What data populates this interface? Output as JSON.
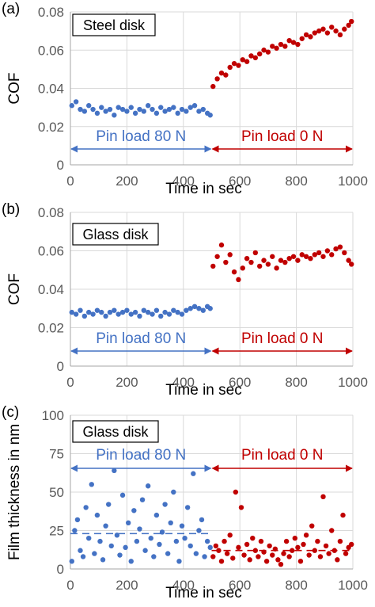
{
  "colors": {
    "blue": "#4472C4",
    "red": "#C00000",
    "grid": "#D9D9D9",
    "axis": "#A6A6A6"
  },
  "chart_data": [
    {
      "panel": "(a)",
      "type": "scatter",
      "box_label": "Steel disk",
      "xlabel": "Time in sec",
      "ylabel": "COF",
      "xlim": [
        0,
        1000
      ],
      "ylim": [
        0,
        0.08
      ],
      "xticks": [
        "0",
        "200",
        "400",
        "600",
        "800",
        "1000"
      ],
      "yticks": [
        "0",
        "0.02",
        "0.04",
        "0.06",
        "0.08"
      ],
      "grid": true,
      "annotations": [
        {
          "text": "Pin load 80 N",
          "x_from": 0,
          "x_to": 500,
          "color": "blue"
        },
        {
          "text": "Pin load 0 N",
          "x_from": 500,
          "x_to": 1000,
          "color": "red"
        }
      ],
      "series": [
        {
          "color": "blue",
          "x": [
            5,
            20,
            35,
            50,
            65,
            80,
            95,
            110,
            125,
            140,
            155,
            170,
            185,
            200,
            215,
            230,
            245,
            260,
            275,
            290,
            305,
            320,
            335,
            350,
            365,
            380,
            395,
            410,
            425,
            440,
            455,
            470,
            485,
            495
          ],
          "y": [
            0.031,
            0.033,
            0.029,
            0.028,
            0.031,
            0.029,
            0.027,
            0.03,
            0.028,
            0.029,
            0.026,
            0.03,
            0.029,
            0.028,
            0.03,
            0.027,
            0.029,
            0.028,
            0.031,
            0.029,
            0.027,
            0.03,
            0.028,
            0.029,
            0.03,
            0.027,
            0.029,
            0.028,
            0.03,
            0.031,
            0.028,
            0.029,
            0.027,
            0.026
          ]
        },
        {
          "color": "red",
          "x": [
            505,
            520,
            535,
            550,
            565,
            580,
            595,
            610,
            625,
            640,
            655,
            670,
            685,
            700,
            715,
            730,
            745,
            760,
            775,
            790,
            805,
            820,
            835,
            850,
            865,
            880,
            895,
            910,
            925,
            940,
            955,
            970,
            985,
            995
          ],
          "y": [
            0.041,
            0.045,
            0.048,
            0.047,
            0.051,
            0.053,
            0.052,
            0.055,
            0.054,
            0.057,
            0.056,
            0.058,
            0.06,
            0.059,
            0.062,
            0.061,
            0.063,
            0.062,
            0.065,
            0.064,
            0.063,
            0.066,
            0.068,
            0.067,
            0.069,
            0.07,
            0.071,
            0.069,
            0.072,
            0.07,
            0.068,
            0.071,
            0.073,
            0.075
          ]
        }
      ]
    },
    {
      "panel": "(b)",
      "type": "scatter",
      "box_label": "Glass disk",
      "xlabel": "Time in sec",
      "ylabel": "COF",
      "xlim": [
        0,
        1000
      ],
      "ylim": [
        0,
        0.08
      ],
      "xticks": [
        "0",
        "200",
        "400",
        "600",
        "800",
        "1000"
      ],
      "yticks": [
        "0",
        "0.02",
        "0.04",
        "0.06",
        "0.08"
      ],
      "grid": true,
      "annotations": [
        {
          "text": "Pin load 80 N",
          "x_from": 0,
          "x_to": 500,
          "color": "blue"
        },
        {
          "text": "Pin load 0 N",
          "x_from": 500,
          "x_to": 1000,
          "color": "red"
        }
      ],
      "series": [
        {
          "color": "blue",
          "x": [
            5,
            20,
            35,
            50,
            65,
            80,
            95,
            110,
            125,
            140,
            155,
            170,
            185,
            200,
            215,
            230,
            245,
            260,
            275,
            290,
            305,
            320,
            335,
            350,
            365,
            380,
            395,
            410,
            425,
            440,
            455,
            470,
            485,
            495
          ],
          "y": [
            0.028,
            0.027,
            0.029,
            0.026,
            0.028,
            0.027,
            0.029,
            0.028,
            0.026,
            0.028,
            0.029,
            0.027,
            0.028,
            0.029,
            0.027,
            0.028,
            0.026,
            0.029,
            0.028,
            0.027,
            0.029,
            0.026,
            0.028,
            0.027,
            0.029,
            0.028,
            0.027,
            0.029,
            0.03,
            0.031,
            0.03,
            0.029,
            0.031,
            0.03
          ]
        },
        {
          "color": "red",
          "x": [
            505,
            520,
            535,
            550,
            565,
            580,
            595,
            610,
            625,
            640,
            655,
            670,
            685,
            700,
            715,
            730,
            745,
            760,
            775,
            790,
            805,
            820,
            835,
            850,
            865,
            880,
            895,
            910,
            925,
            940,
            955,
            970,
            985,
            995
          ],
          "y": [
            0.052,
            0.057,
            0.063,
            0.054,
            0.058,
            0.049,
            0.045,
            0.051,
            0.056,
            0.054,
            0.059,
            0.052,
            0.055,
            0.053,
            0.057,
            0.051,
            0.055,
            0.054,
            0.056,
            0.057,
            0.055,
            0.058,
            0.057,
            0.056,
            0.058,
            0.059,
            0.057,
            0.06,
            0.058,
            0.061,
            0.062,
            0.059,
            0.055,
            0.053
          ]
        }
      ]
    },
    {
      "panel": "(c)",
      "type": "scatter",
      "box_label": "Glass disk",
      "xlabel": "Time in sec",
      "ylabel": "Film thickness in nm",
      "xlim": [
        0,
        1000
      ],
      "ylim": [
        0,
        100
      ],
      "xticks": [
        "0",
        "200",
        "400",
        "600",
        "800",
        "1000"
      ],
      "yticks": [
        "0",
        "25",
        "50",
        "75",
        "100"
      ],
      "grid": true,
      "annotations": [
        {
          "text": "Pin load 80 N",
          "x_from": 0,
          "x_to": 500,
          "color": "blue"
        },
        {
          "text": "Pin load 0 N",
          "x_from": 500,
          "x_to": 1000,
          "color": "red"
        }
      ],
      "mean_lines": [
        {
          "color": "blue",
          "x_from": 0,
          "x_to": 500,
          "y": 23
        },
        {
          "color": "red",
          "x_from": 500,
          "x_to": 1000,
          "y": 12
        }
      ],
      "series": [
        {
          "color": "blue",
          "x": [
            5,
            15,
            25,
            35,
            45,
            55,
            65,
            75,
            85,
            95,
            105,
            115,
            125,
            135,
            145,
            155,
            165,
            175,
            185,
            195,
            205,
            215,
            225,
            235,
            245,
            255,
            265,
            275,
            285,
            295,
            305,
            315,
            325,
            335,
            345,
            355,
            365,
            375,
            385,
            395,
            405,
            415,
            425,
            435,
            445,
            455,
            465,
            475,
            485,
            495
          ],
          "y": [
            5,
            25,
            32,
            12,
            8,
            40,
            20,
            55,
            10,
            35,
            18,
            6,
            28,
            42,
            15,
            64,
            22,
            9,
            48,
            14,
            30,
            5,
            38,
            18,
            26,
            45,
            12,
            54,
            20,
            8,
            35,
            16,
            24,
            42,
            10,
            30,
            50,
            18,
            5,
            28,
            20,
            40,
            15,
            62,
            10,
            25,
            32,
            8,
            18,
            14
          ]
        },
        {
          "color": "red",
          "x": [
            505,
            515,
            525,
            535,
            545,
            555,
            565,
            575,
            585,
            595,
            605,
            615,
            625,
            635,
            645,
            655,
            665,
            675,
            685,
            695,
            705,
            715,
            725,
            735,
            745,
            755,
            765,
            775,
            785,
            795,
            805,
            815,
            825,
            835,
            845,
            855,
            865,
            875,
            885,
            895,
            905,
            915,
            925,
            935,
            945,
            955,
            965,
            975,
            985,
            995
          ],
          "y": [
            8,
            15,
            12,
            5,
            18,
            10,
            22,
            7,
            50,
            14,
            40,
            9,
            16,
            6,
            20,
            12,
            8,
            18,
            11,
            5,
            15,
            9,
            13,
            6,
            3,
            10,
            18,
            8,
            12,
            20,
            14,
            5,
            16,
            22,
            9,
            28,
            12,
            18,
            8,
            47,
            15,
            10,
            25,
            12,
            6,
            18,
            35,
            10,
            14,
            16
          ]
        }
      ]
    }
  ]
}
